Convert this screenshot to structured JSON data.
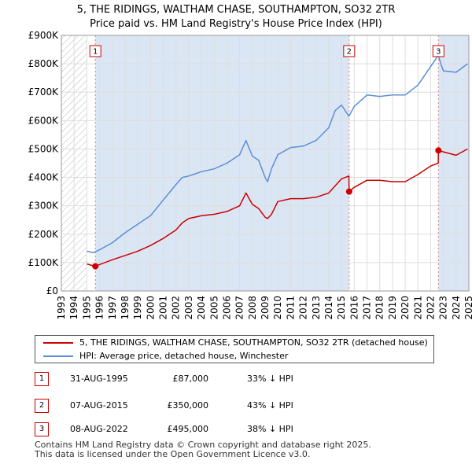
{
  "title": {
    "line1": "5, THE RIDINGS, WALTHAM CHASE, SOUTHAMPTON, SO32 2TR",
    "line2": "Price paid vs. HM Land Registry's House Price Index (HPI)"
  },
  "colors": {
    "property": "#cc0000",
    "hpi": "#5b8ed6",
    "grid": "#dddddd",
    "shade": "#dbe6f5",
    "hatch": "#b8b8b8",
    "marker_line": "#e08080"
  },
  "chart_data": {
    "type": "line",
    "title": "5, THE RIDINGS, WALTHAM CHASE, SOUTHAMPTON, SO32 2TR — Price paid vs. HM Land Registry's House Price Index (HPI)",
    "xlabel": "",
    "ylabel": "",
    "xlim": [
      1993,
      2025
    ],
    "ylim": [
      0,
      900000
    ],
    "grid": true,
    "data_start": 1995.0,
    "x_ticks": [
      "1993",
      "1994",
      "1995",
      "1996",
      "1997",
      "1998",
      "1999",
      "2000",
      "2001",
      "2002",
      "2003",
      "2004",
      "2005",
      "2006",
      "2007",
      "2008",
      "2009",
      "2010",
      "2011",
      "2012",
      "2013",
      "2014",
      "2015",
      "2016",
      "2017",
      "2018",
      "2019",
      "2020",
      "2021",
      "2022",
      "2023",
      "2024",
      "2025"
    ],
    "y_ticks": [
      {
        "value": 0,
        "label": "£0"
      },
      {
        "value": 100000,
        "label": "£100K"
      },
      {
        "value": 200000,
        "label": "£200K"
      },
      {
        "value": 300000,
        "label": "£300K"
      },
      {
        "value": 400000,
        "label": "£400K"
      },
      {
        "value": 500000,
        "label": "£500K"
      },
      {
        "value": 600000,
        "label": "£600K"
      },
      {
        "value": 700000,
        "label": "£700K"
      },
      {
        "value": 800000,
        "label": "£800K"
      },
      {
        "value": 900000,
        "label": "£900K"
      }
    ],
    "series": [
      {
        "name": "5, THE RIDINGS, WALTHAM CHASE, SOUTHAMPTON, SO32 2TR (detached house)",
        "color": "#cc0000",
        "x": [
          1995.0,
          1995.67,
          1996.0,
          1997.0,
          1998.0,
          1999.0,
          2000.0,
          2001.0,
          2002.0,
          2002.5,
          2003.0,
          2004.0,
          2005.0,
          2006.0,
          2007.0,
          2007.5,
          2008.0,
          2008.5,
          2009.0,
          2009.2,
          2009.5,
          2010.0,
          2011.0,
          2012.0,
          2013.0,
          2014.0,
          2014.5,
          2015.0,
          2015.58,
          2015.6,
          2016.0,
          2017.0,
          2018.0,
          2019.0,
          2020.0,
          2021.0,
          2022.0,
          2022.6,
          2022.61,
          2023.0,
          2024.0,
          2024.9
        ],
        "values": [
          95000,
          87000,
          93000,
          110000,
          125000,
          140000,
          160000,
          185000,
          215000,
          240000,
          255000,
          265000,
          270000,
          280000,
          300000,
          345000,
          305000,
          290000,
          260000,
          255000,
          270000,
          315000,
          325000,
          325000,
          330000,
          345000,
          370000,
          395000,
          405000,
          350000,
          365000,
          390000,
          390000,
          385000,
          385000,
          410000,
          440000,
          450000,
          495000,
          490000,
          478000,
          500000
        ]
      },
      {
        "name": "HPI: Average price, detached house, Winchester",
        "color": "#5b8ed6",
        "x": [
          1995.0,
          1995.5,
          1996.0,
          1997.0,
          1998.0,
          1999.0,
          2000.0,
          2001.0,
          2002.0,
          2002.5,
          2003.0,
          2004.0,
          2005.0,
          2006.0,
          2007.0,
          2007.5,
          2008.0,
          2008.5,
          2009.0,
          2009.2,
          2009.5,
          2010.0,
          2011.0,
          2012.0,
          2013.0,
          2014.0,
          2014.5,
          2015.0,
          2015.58,
          2016.0,
          2017.0,
          2018.0,
          2019.0,
          2020.0,
          2021.0,
          2022.0,
          2022.6,
          2022.8,
          2023.0,
          2024.0,
          2024.9
        ],
        "values": [
          140000,
          135000,
          145000,
          170000,
          205000,
          235000,
          265000,
          320000,
          375000,
          400000,
          405000,
          420000,
          430000,
          450000,
          480000,
          530000,
          475000,
          460000,
          400000,
          385000,
          430000,
          480000,
          505000,
          510000,
          530000,
          575000,
          635000,
          655000,
          615000,
          650000,
          690000,
          685000,
          690000,
          690000,
          725000,
          790000,
          830000,
          800000,
          775000,
          770000,
          800000
        ]
      }
    ],
    "markers": [
      {
        "label": "1",
        "x": 1995.67,
        "value": 87000
      },
      {
        "label": "2",
        "x": 2015.6,
        "value": 350000
      },
      {
        "label": "3",
        "x": 2022.61,
        "value": 495000
      }
    ]
  },
  "legend": {
    "property_label": "5, THE RIDINGS, WALTHAM CHASE, SOUTHAMPTON, SO32 2TR (detached house)",
    "hpi_label": "HPI: Average price, detached house, Winchester"
  },
  "sales": [
    {
      "num": "1",
      "date": "31-AUG-1995",
      "price": "£87,000",
      "hpi": "33% ↓ HPI"
    },
    {
      "num": "2",
      "date": "07-AUG-2015",
      "price": "£350,000",
      "hpi": "43% ↓ HPI"
    },
    {
      "num": "3",
      "date": "08-AUG-2022",
      "price": "£495,000",
      "hpi": "38% ↓ HPI"
    }
  ],
  "footer": {
    "line1": "Contains HM Land Registry data © Crown copyright and database right 2025.",
    "line2": "This data is licensed under the Open Government Licence v3.0."
  }
}
